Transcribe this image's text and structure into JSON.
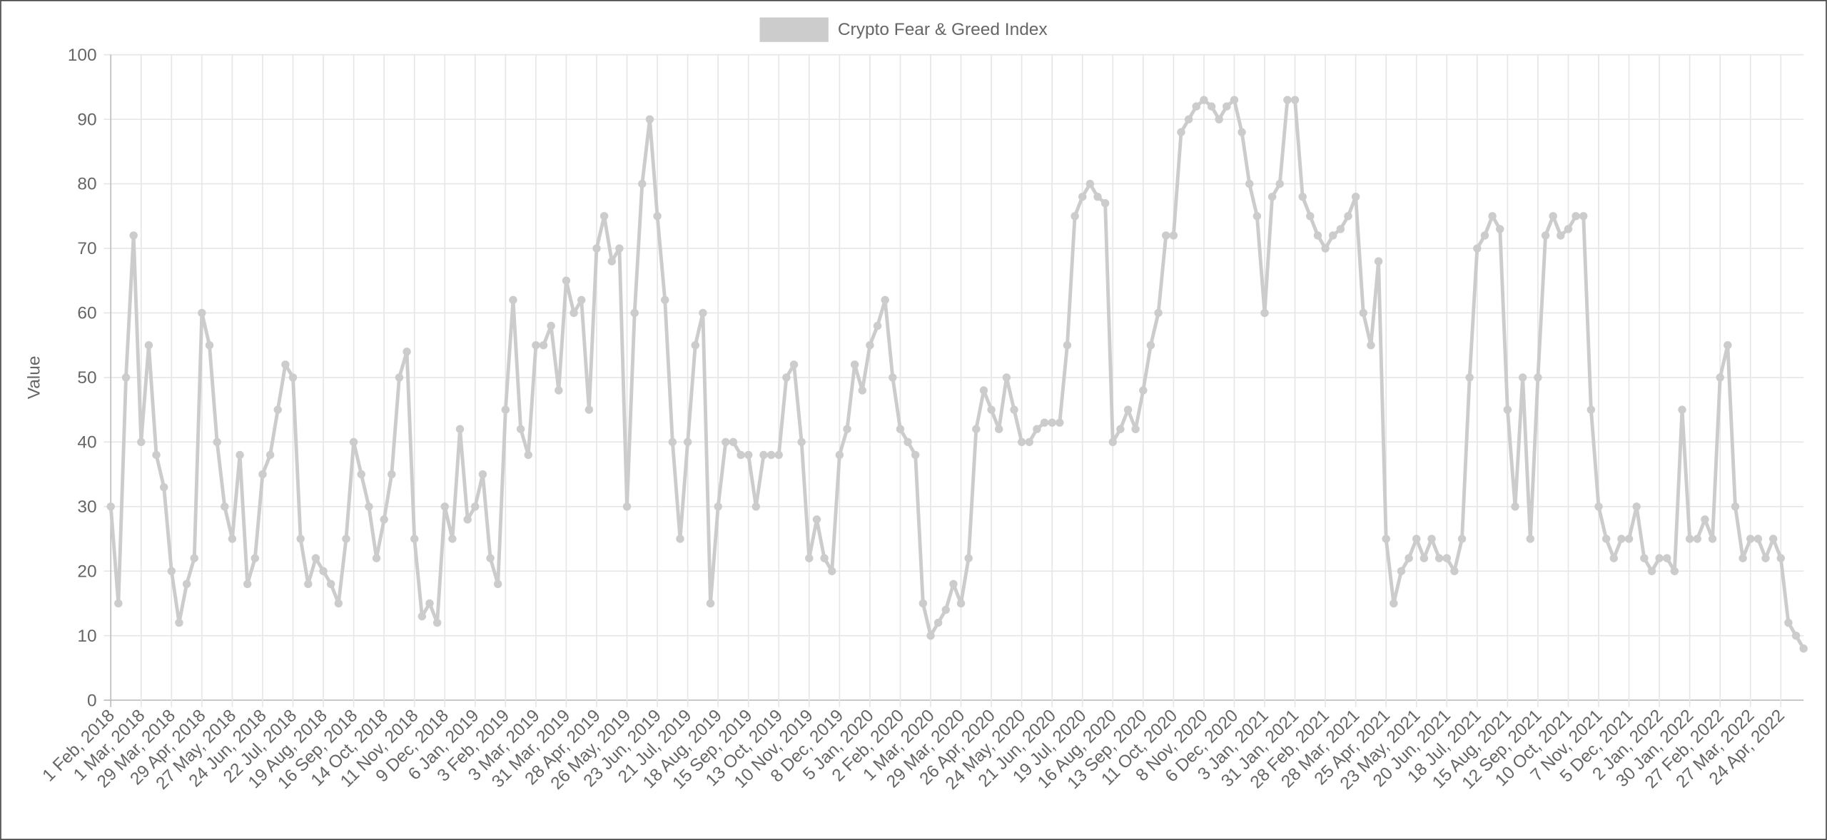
{
  "chart_data": {
    "type": "line",
    "legend_position": "top",
    "ylabel": "Value",
    "ylim": [
      0,
      100
    ],
    "yticks": [
      0,
      10,
      20,
      30,
      40,
      50,
      60,
      70,
      80,
      90,
      100
    ],
    "grid": true,
    "categories": [
      "1 Feb, 2018",
      null,
      null,
      null,
      "1 Mar, 2018",
      null,
      null,
      null,
      "29 Mar, 2018",
      null,
      null,
      null,
      "29 Apr, 2018",
      null,
      null,
      null,
      "27 May, 2018",
      null,
      null,
      null,
      "24 Jun, 2018",
      null,
      null,
      null,
      "22 Jul, 2018",
      null,
      null,
      null,
      "19 Aug, 2018",
      null,
      null,
      null,
      "16 Sep, 2018",
      null,
      null,
      null,
      "14 Oct, 2018",
      null,
      null,
      null,
      "11 Nov, 2018",
      null,
      null,
      null,
      "9 Dec, 2018",
      null,
      null,
      null,
      "6 Jan, 2019",
      null,
      null,
      null,
      "3 Feb, 2019",
      null,
      null,
      null,
      "3 Mar, 2019",
      null,
      null,
      null,
      "31 Mar, 2019",
      null,
      null,
      null,
      "28 Apr, 2019",
      null,
      null,
      null,
      "26 May, 2019",
      null,
      null,
      null,
      "23 Jun, 2019",
      null,
      null,
      null,
      "21 Jul, 2019",
      null,
      null,
      null,
      "18 Aug, 2019",
      null,
      null,
      null,
      "15 Sep, 2019",
      null,
      null,
      null,
      "13 Oct, 2019",
      null,
      null,
      null,
      "10 Nov, 2019",
      null,
      null,
      null,
      "8 Dec, 2019",
      null,
      null,
      null,
      "5 Jan, 2020",
      null,
      null,
      null,
      "2 Feb, 2020",
      null,
      null,
      null,
      "1 Mar, 2020",
      null,
      null,
      null,
      "29 Mar, 2020",
      null,
      null,
      null,
      "26 Apr, 2020",
      null,
      null,
      null,
      "24 May, 2020",
      null,
      null,
      null,
      "21 Jun, 2020",
      null,
      null,
      null,
      "19 Jul, 2020",
      null,
      null,
      null,
      "16 Aug, 2020",
      null,
      null,
      null,
      "13 Sep, 2020",
      null,
      null,
      null,
      "11 Oct, 2020",
      null,
      null,
      null,
      "8 Nov, 2020",
      null,
      null,
      null,
      "6 Dec, 2020",
      null,
      null,
      null,
      "3 Jan, 2021",
      null,
      null,
      null,
      "31 Jan, 2021",
      null,
      null,
      null,
      "28 Feb, 2021",
      null,
      null,
      null,
      "28 Mar, 2021",
      null,
      null,
      null,
      "25 Apr, 2021",
      null,
      null,
      null,
      "23 May, 2021",
      null,
      null,
      null,
      "20 Jun, 2021",
      null,
      null,
      null,
      "18 Jul, 2021",
      null,
      null,
      null,
      "15 Aug, 2021",
      null,
      null,
      null,
      "12 Sep, 2021",
      null,
      null,
      null,
      "10 Oct, 2021",
      null,
      null,
      null,
      "7 Nov, 2021",
      null,
      null,
      null,
      "5 Dec, 2021",
      null,
      null,
      null,
      "2 Jan, 2022",
      null,
      null,
      null,
      "30 Jan, 2022",
      null,
      null,
      null,
      "27 Feb, 2022",
      null,
      null,
      null,
      "27 Mar, 2022",
      null,
      null,
      null,
      "24 Apr, 2022",
      null,
      null,
      null
    ],
    "series": [
      {
        "name": "Crypto Fear & Greed Index",
        "color": "#cccccc",
        "values": [
          30,
          15,
          50,
          72,
          40,
          55,
          38,
          33,
          20,
          12,
          18,
          22,
          60,
          55,
          40,
          30,
          25,
          38,
          18,
          22,
          35,
          38,
          45,
          52,
          50,
          25,
          18,
          22,
          20,
          18,
          15,
          25,
          40,
          35,
          30,
          22,
          28,
          35,
          50,
          54,
          25,
          13,
          15,
          12,
          30,
          25,
          42,
          28,
          30,
          35,
          22,
          18,
          45,
          62,
          42,
          38,
          55,
          55,
          58,
          48,
          65,
          60,
          62,
          45,
          70,
          75,
          68,
          70,
          30,
          60,
          80,
          90,
          75,
          62,
          40,
          25,
          40,
          55,
          60,
          15,
          30,
          40,
          40,
          38,
          38,
          30,
          38,
          38,
          38,
          50,
          52,
          40,
          22,
          28,
          22,
          20,
          38,
          42,
          52,
          48,
          55,
          58,
          62,
          50,
          42,
          40,
          38,
          15,
          10,
          12,
          14,
          18,
          15,
          22,
          42,
          48,
          45,
          42,
          50,
          45,
          40,
          40,
          42,
          43,
          43,
          43,
          55,
          75,
          78,
          80,
          78,
          77,
          40,
          42,
          45,
          42,
          48,
          55,
          60,
          72,
          72,
          88,
          90,
          92,
          93,
          92,
          90,
          92,
          93,
          88,
          80,
          75,
          60,
          78,
          80,
          93,
          93,
          78,
          75,
          72,
          70,
          72,
          73,
          75,
          78,
          60,
          55,
          68,
          25,
          15,
          20,
          22,
          25,
          22,
          25,
          22,
          22,
          20,
          25,
          50,
          70,
          72,
          75,
          73,
          45,
          30,
          50,
          25,
          50,
          72,
          75,
          72,
          73,
          75,
          75,
          45,
          30,
          25,
          22,
          25,
          25,
          30,
          22,
          20,
          22,
          22,
          20,
          45,
          25,
          25,
          28,
          25,
          50,
          55,
          30,
          22,
          25,
          25,
          22,
          25,
          22,
          12,
          10,
          8
        ]
      }
    ]
  }
}
